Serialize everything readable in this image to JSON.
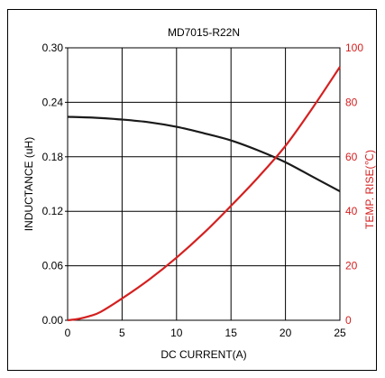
{
  "chart_data": {
    "type": "line",
    "title": "MD7015-R22N",
    "xlabel": "DC CURRENT(A)",
    "ylabel": "INDUCTANCE (uH)",
    "y2label": "TEMP. RISE(℃)",
    "xlim": [
      0,
      25
    ],
    "ylim": [
      0,
      0.3
    ],
    "y2lim": [
      0,
      100
    ],
    "x_ticks": [
      "0",
      "5",
      "10",
      "15",
      "20",
      "25"
    ],
    "y_ticks": [
      "0.00",
      "0.06",
      "0.12",
      "0.18",
      "0.24",
      "0.30"
    ],
    "y2_ticks": [
      "0",
      "20",
      "40",
      "60",
      "80",
      "100"
    ],
    "grid": true,
    "series": [
      {
        "name": "Inductance",
        "axis": "left",
        "color": "#1a1a1a",
        "x": [
          0,
          2.5,
          5,
          7.5,
          10,
          12.5,
          15,
          17.5,
          20,
          22.5,
          25
        ],
        "y": [
          0.224,
          0.223,
          0.221,
          0.218,
          0.213,
          0.206,
          0.198,
          0.187,
          0.174,
          0.158,
          0.142
        ]
      },
      {
        "name": "Temp. Rise",
        "axis": "right",
        "color": "#d42020",
        "x": [
          0,
          1,
          2,
          3,
          5,
          7.5,
          10,
          12.5,
          15,
          17.5,
          20,
          22.5,
          25
        ],
        "y": [
          0,
          0.5,
          1.5,
          3,
          8,
          15,
          23,
          32,
          42,
          52.5,
          64,
          78,
          93
        ]
      }
    ]
  }
}
